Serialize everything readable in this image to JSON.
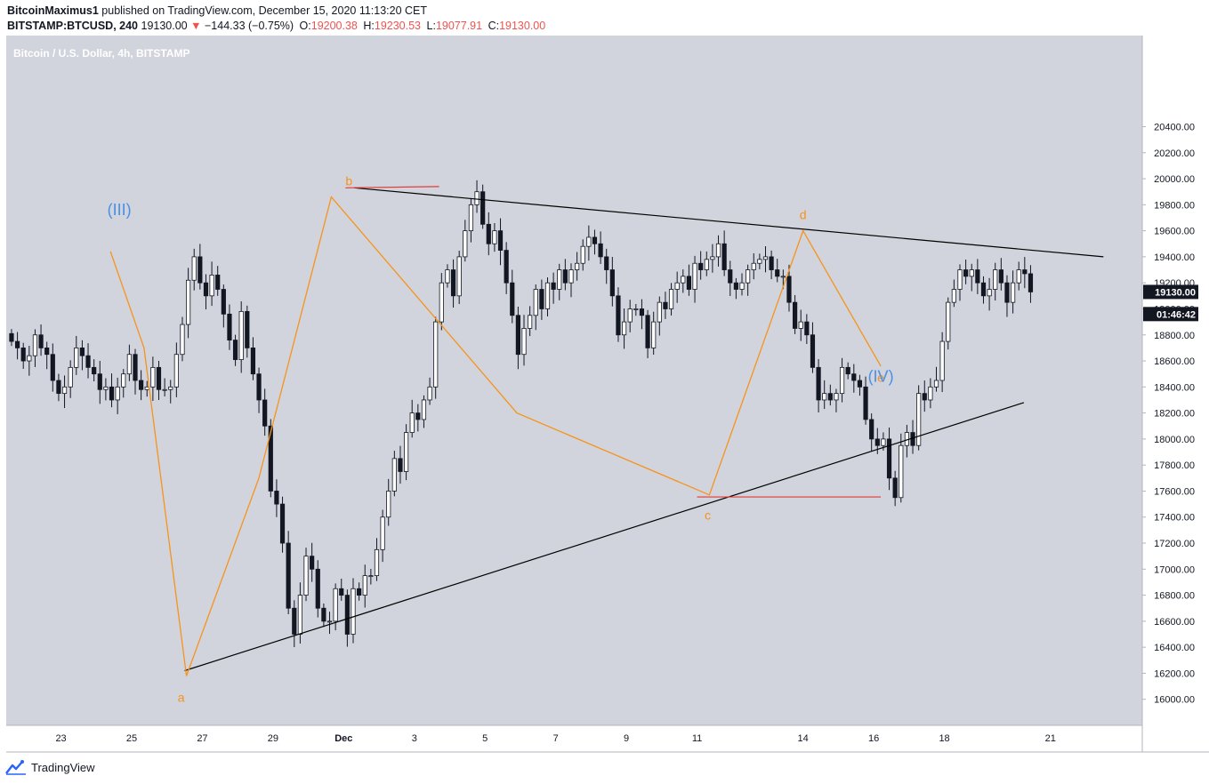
{
  "header": {
    "author": "BitcoinMaximus1",
    "published_text": "published on TradingView.com, December 15, 2020 11:13:20 CET",
    "symbol": "BITSTAMP:BTCUSD",
    "interval": ", 240",
    "last_price": "19130.00",
    "change_arrow": "▼",
    "change_text": "−144.33 (−0.75%)",
    "o_label": "O:",
    "o_value": "19200.38",
    "h_label": "H:",
    "h_value": "19230.53",
    "l_label": "L:",
    "l_value": "19077.91",
    "c_label": "C:",
    "c_value": "19130.00"
  },
  "footer": {
    "brand": "TradingView"
  },
  "colors": {
    "plot_bg": "#d1d4dc",
    "wave_orange": "#f7931a",
    "wave_blue": "#4a90e2",
    "trendline": "#000000",
    "level_red": "#e53935",
    "price_label_bg": "#131722",
    "bear_candle": "#131722",
    "bull_candle": "#ffffff"
  },
  "chart_data": {
    "type": "candlestick",
    "title": "Bitcoin / U.S. Dollar, 4h, BITSTAMP",
    "currency_label": "USD",
    "ylim": [
      15800,
      21100
    ],
    "y_ticks": [
      16000,
      16200,
      16400,
      16600,
      16800,
      17000,
      17200,
      17400,
      17600,
      17800,
      18000,
      18200,
      18400,
      18600,
      18800,
      19000,
      19200,
      19400,
      19600,
      19800,
      20000,
      20200,
      20400
    ],
    "y_tick_labels": [
      "16000.00",
      "16200.00",
      "16400.00",
      "16600.00",
      "16800.00",
      "17000.00",
      "17200.00",
      "17400.00",
      "17600.00",
      "17800.00",
      "18000.00",
      "18200.00",
      "18400.00",
      "18600.00",
      "18800.00",
      "19000.00",
      "19200.00",
      "19400.00",
      "19600.00",
      "19800.00",
      "20000.00",
      "20200.00",
      "20400.00"
    ],
    "x_ticks": [
      {
        "label": "23",
        "day": 23
      },
      {
        "label": "25",
        "day": 25
      },
      {
        "label": "27",
        "day": 27
      },
      {
        "label": "29",
        "day": 29
      },
      {
        "label": "Dec",
        "day": 31,
        "bold": true
      },
      {
        "label": "3",
        "day": 33
      },
      {
        "label": "5",
        "day": 35
      },
      {
        "label": "7",
        "day": 37
      },
      {
        "label": "9",
        "day": 39
      },
      {
        "label": "11",
        "day": 41
      },
      {
        "label": "14",
        "day": 44
      },
      {
        "label": "16",
        "day": 46
      },
      {
        "label": "18",
        "day": 48
      },
      {
        "label": "21",
        "day": 51
      }
    ],
    "xlim_day": [
      21.45,
      53.6
    ],
    "candle_start_day": 21.6,
    "candle_step_day": 0.1667,
    "closes": [
      18750,
      18700,
      18600,
      18640,
      18800,
      18700,
      18650,
      18450,
      18350,
      18400,
      18550,
      18700,
      18640,
      18550,
      18500,
      18380,
      18400,
      18300,
      18400,
      18500,
      18650,
      18450,
      18380,
      18400,
      18550,
      18380,
      18380,
      18400,
      18650,
      18880,
      19220,
      19400,
      19200,
      19100,
      19260,
      19150,
      18960,
      18760,
      18610,
      18980,
      18700,
      18500,
      18300,
      18100,
      17600,
      17500,
      17200,
      16700,
      16500,
      16800,
      17100,
      17000,
      16700,
      16600,
      16600,
      16850,
      16800,
      16500,
      16850,
      16800,
      16950,
      16950,
      17150,
      17400,
      17600,
      17850,
      17750,
      18050,
      18200,
      18150,
      18300,
      18400,
      18900,
      19200,
      19300,
      19100,
      19400,
      19600,
      19800,
      19900,
      19650,
      19500,
      19600,
      19450,
      19200,
      18950,
      18650,
      18850,
      18950,
      19150,
      19000,
      19200,
      19150,
      19300,
      19200,
      19300,
      19350,
      19480,
      19550,
      19500,
      19400,
      19300,
      19100,
      18800,
      18900,
      19000,
      19000,
      18950,
      18700,
      18900,
      19050,
      19000,
      19150,
      19200,
      19250,
      19150,
      19350,
      19300,
      19380,
      19400,
      19500,
      19300,
      19200,
      19150,
      19200,
      19300,
      19350,
      19380,
      19400,
      19300,
      19250,
      19250,
      19050,
      18850,
      18900,
      18800,
      18550,
      18300,
      18350,
      18300,
      18350,
      18550,
      18500,
      18450,
      18400,
      18150,
      18000,
      17950,
      18000,
      17700,
      17550,
      17950,
      18050,
      17950,
      18350,
      18300,
      18400,
      18450,
      18750,
      19050,
      19150,
      19300,
      19250,
      19300,
      19200,
      19100,
      19150,
      19300,
      19200,
      19050,
      19200,
      19300,
      19270,
      19130
    ],
    "wave_labels": [
      {
        "text": "b",
        "day": 31.15,
        "price": 19950,
        "color": "orange"
      },
      {
        "text": "d",
        "day": 44.0,
        "price": 19690,
        "color": "orange"
      },
      {
        "text": "a",
        "day": 26.4,
        "price": 15980,
        "color": "orange"
      },
      {
        "text": "c",
        "day": 41.3,
        "price": 17380,
        "color": "orange"
      },
      {
        "text": "e",
        "day": 46.2,
        "price": 18440,
        "color": "orange"
      },
      {
        "text": "(III)",
        "day": 24.65,
        "price": 19720,
        "color": "blue"
      },
      {
        "text": "(IV)",
        "day": 46.2,
        "price": 18440,
        "color": "blue"
      }
    ],
    "abcde_path": [
      {
        "day": 24.4,
        "price": 19440
      },
      {
        "day": 25.35,
        "price": 18700
      },
      {
        "day": 26.55,
        "price": 16180
      },
      {
        "day": 28.6,
        "price": 17700
      },
      {
        "day": 30.65,
        "price": 19860
      },
      {
        "day": 35.9,
        "price": 18200
      },
      {
        "day": 41.35,
        "price": 17570
      },
      {
        "day": 44.0,
        "price": 19600
      },
      {
        "day": 46.2,
        "price": 18560
      }
    ],
    "upper_trendline": [
      {
        "day": 31.3,
        "price": 19930
      },
      {
        "day": 52.5,
        "price": 19400
      }
    ],
    "lower_trendline": [
      {
        "day": 26.5,
        "price": 16220
      },
      {
        "day": 50.25,
        "price": 18280
      }
    ],
    "red_levels": [
      {
        "day_from": 31.05,
        "day_to": 33.7,
        "price": 19930,
        "price_to": 19940
      },
      {
        "day_from": 41.0,
        "day_to": 46.2,
        "price": 17555,
        "price_to": 17555
      }
    ],
    "price_labels": [
      {
        "text": "19130.00",
        "price": 19130
      },
      {
        "text": "01:46:42",
        "price": 18960
      }
    ]
  }
}
